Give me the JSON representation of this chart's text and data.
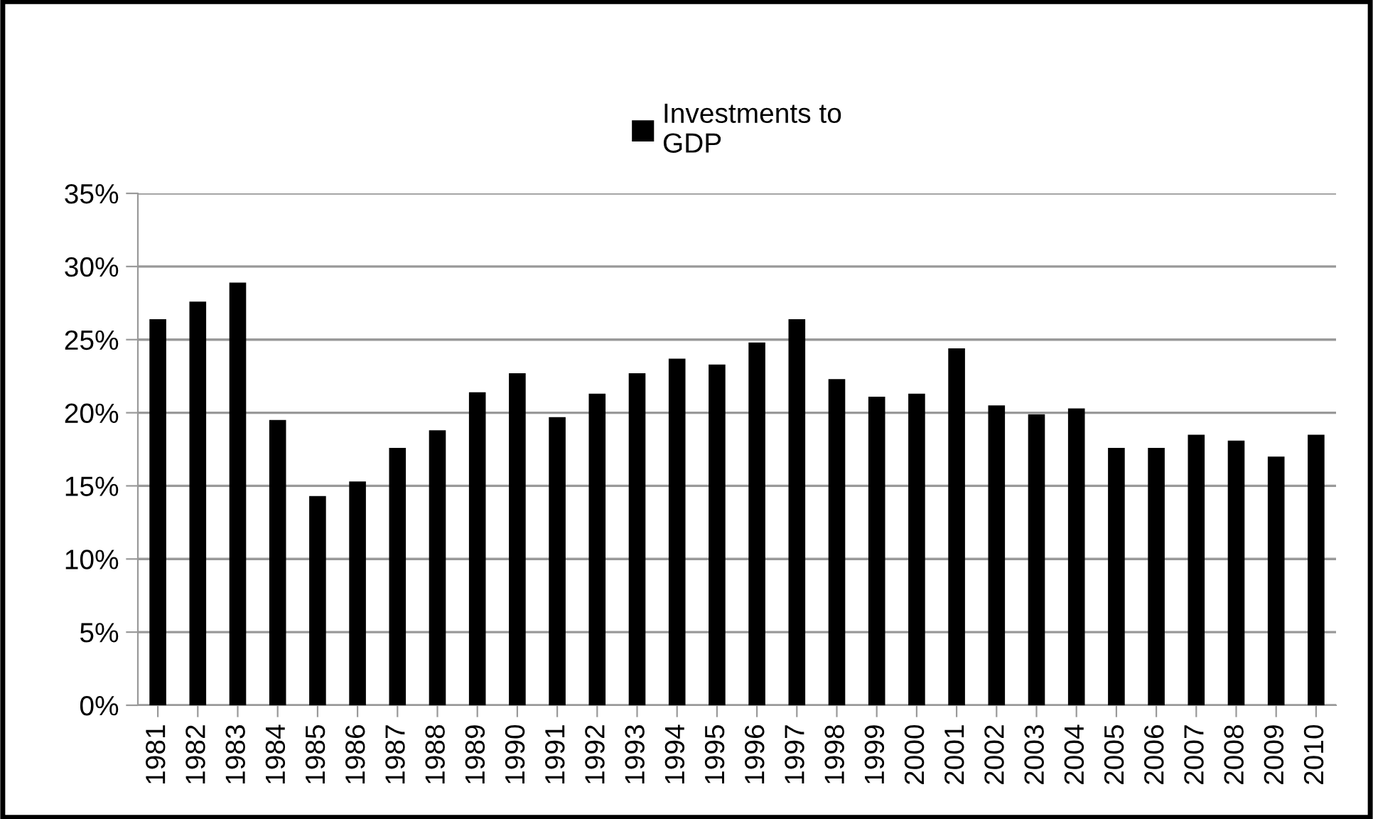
{
  "chart_data": {
    "type": "bar",
    "categories": [
      "1981",
      "1982",
      "1983",
      "1984",
      "1985",
      "1986",
      "1987",
      "1988",
      "1989",
      "1990",
      "1991",
      "1992",
      "1993",
      "1994",
      "1995",
      "1996",
      "1997",
      "1998",
      "1999",
      "2000",
      "2001",
      "2002",
      "2003",
      "2004",
      "2005",
      "2006",
      "2007",
      "2008",
      "2009",
      "2010"
    ],
    "series": [
      {
        "name": "Investments to\nGDP",
        "color": "#000000",
        "values": [
          26.4,
          27.6,
          28.9,
          19.5,
          14.3,
          15.3,
          17.6,
          18.8,
          21.4,
          22.7,
          19.7,
          21.3,
          22.7,
          23.7,
          23.3,
          24.8,
          26.4,
          22.3,
          21.1,
          21.3,
          24.4,
          20.5,
          19.9,
          20.3,
          17.6,
          17.6,
          18.5,
          18.1,
          17.0,
          18.5
        ]
      }
    ],
    "ylim": [
      0,
      35
    ],
    "yticks": [
      {
        "value": 0,
        "label": "0%"
      },
      {
        "value": 5,
        "label": "5%"
      },
      {
        "value": 10,
        "label": "10%"
      },
      {
        "value": 15,
        "label": "15%"
      },
      {
        "value": 20,
        "label": "20%"
      },
      {
        "value": 25,
        "label": "25%"
      },
      {
        "value": 30,
        "label": "30%"
      },
      {
        "value": 35,
        "label": "35%"
      }
    ],
    "grid": "y",
    "legend": "top"
  }
}
